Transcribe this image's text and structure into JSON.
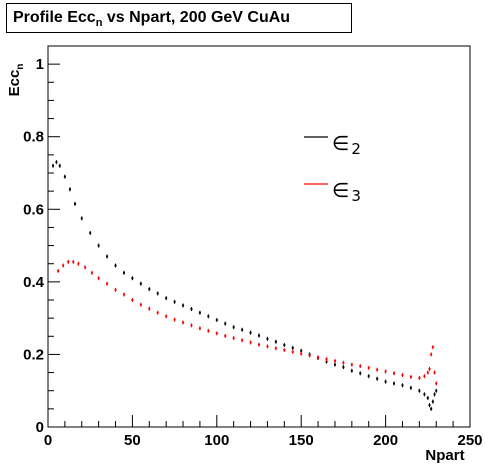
{
  "title": {
    "prefix": "Profile Ecc",
    "sub": "n",
    "suffix": " vs Npart, 200 GeV CuAu"
  },
  "legend": {
    "e2_symbol": "∈",
    "e2_sub": "2",
    "e3_symbol": "∈",
    "e3_sub": "3"
  },
  "colors": {
    "e2": "#000000",
    "e3": "#ff0000",
    "axes": "#000000",
    "background": "#ffffff"
  },
  "chart_data": {
    "type": "scatter",
    "title": "Profile Ecc_n vs Npart, 200 GeV CuAu",
    "xlabel": "Npart",
    "ylabel": "Ecc_n",
    "xlim": [
      0,
      250
    ],
    "ylim": [
      0,
      1.05
    ],
    "x_ticks": [
      "0",
      "50",
      "100",
      "150",
      "200",
      "250"
    ],
    "y_ticks": [
      "0",
      "0.2",
      "0.4",
      "0.6",
      "0.8",
      "1"
    ],
    "grid": false,
    "legend_position": "top-right",
    "series": [
      {
        "name": "∈2",
        "color": "#000000",
        "x": [
          3,
          5,
          7,
          10,
          13,
          16,
          20,
          25,
          30,
          35,
          40,
          45,
          50,
          55,
          60,
          65,
          70,
          75,
          80,
          85,
          90,
          95,
          100,
          105,
          110,
          115,
          120,
          125,
          130,
          135,
          140,
          145,
          150,
          155,
          160,
          165,
          170,
          175,
          180,
          185,
          190,
          195,
          200,
          205,
          210,
          215,
          220,
          223,
          225,
          226,
          227,
          228,
          229,
          230
        ],
        "y": [
          0.72,
          0.73,
          0.72,
          0.69,
          0.655,
          0.615,
          0.575,
          0.535,
          0.5,
          0.47,
          0.445,
          0.425,
          0.41,
          0.395,
          0.38,
          0.368,
          0.355,
          0.345,
          0.335,
          0.325,
          0.315,
          0.305,
          0.295,
          0.285,
          0.275,
          0.268,
          0.26,
          0.252,
          0.243,
          0.235,
          0.226,
          0.218,
          0.21,
          0.2,
          0.19,
          0.18,
          0.172,
          0.165,
          0.155,
          0.148,
          0.14,
          0.133,
          0.125,
          0.12,
          0.115,
          0.108,
          0.1,
          0.09,
          0.08,
          0.06,
          0.05,
          0.07,
          0.09,
          0.1
        ]
      },
      {
        "name": "∈3",
        "color": "#ff0000",
        "x": [
          6,
          9,
          12,
          15,
          18,
          22,
          26,
          30,
          35,
          40,
          45,
          50,
          55,
          60,
          65,
          70,
          75,
          80,
          85,
          90,
          95,
          100,
          105,
          110,
          115,
          120,
          125,
          130,
          135,
          140,
          145,
          150,
          155,
          160,
          165,
          170,
          175,
          180,
          185,
          190,
          195,
          200,
          205,
          210,
          215,
          220,
          223,
          225,
          226,
          227,
          228,
          229,
          230
        ],
        "y": [
          0.43,
          0.445,
          0.455,
          0.455,
          0.45,
          0.44,
          0.425,
          0.41,
          0.395,
          0.378,
          0.365,
          0.35,
          0.337,
          0.326,
          0.315,
          0.305,
          0.296,
          0.288,
          0.28,
          0.272,
          0.265,
          0.258,
          0.251,
          0.245,
          0.239,
          0.233,
          0.227,
          0.222,
          0.217,
          0.212,
          0.207,
          0.202,
          0.197,
          0.192,
          0.187,
          0.182,
          0.177,
          0.172,
          0.168,
          0.163,
          0.158,
          0.153,
          0.148,
          0.143,
          0.138,
          0.135,
          0.14,
          0.15,
          0.16,
          0.2,
          0.22,
          0.15,
          0.12
        ]
      }
    ]
  }
}
